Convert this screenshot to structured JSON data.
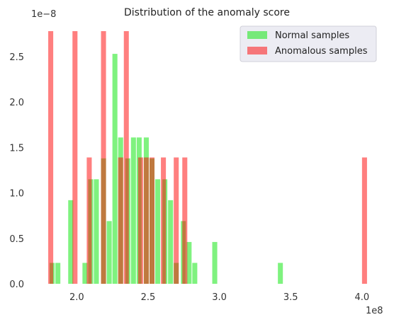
{
  "chart_data": {
    "type": "bar",
    "title": "Distribution of the anomaly score",
    "x_exponent_label": "1e8",
    "y_exponent_label": "1e−8",
    "xlim": [
      1.75,
      4.1
    ],
    "ylim": [
      0,
      2.85
    ],
    "x_ticks": [
      2.0,
      2.5,
      3.0,
      3.5,
      4.0
    ],
    "x_tick_labels": [
      "2.0",
      "2.5",
      "3.0",
      "3.5",
      "4.0"
    ],
    "y_ticks": [
      0.0,
      0.5,
      1.0,
      1.5,
      2.0,
      2.5
    ],
    "y_tick_labels": [
      "0.0",
      "0.5",
      "1.0",
      "1.5",
      "2.0",
      "2.5"
    ],
    "grid": false,
    "legend_position": "top-right",
    "series": [
      {
        "name": "Normal samples",
        "color": "#00e600",
        "bins": [
          {
            "x0": 1.81,
            "x1": 1.85,
            "y": 0.23
          },
          {
            "x0": 1.85,
            "x1": 1.89,
            "y": 0.23
          },
          {
            "x0": 1.94,
            "x1": 1.98,
            "y": 0.92
          },
          {
            "x0": 2.04,
            "x1": 2.08,
            "y": 0.23
          },
          {
            "x0": 2.08,
            "x1": 2.12,
            "y": 1.15
          },
          {
            "x0": 2.12,
            "x1": 2.16,
            "y": 1.15
          },
          {
            "x0": 2.17,
            "x1": 2.21,
            "y": 1.38
          },
          {
            "x0": 2.21,
            "x1": 2.25,
            "y": 0.69
          },
          {
            "x0": 2.25,
            "x1": 2.29,
            "y": 2.53
          },
          {
            "x0": 2.29,
            "x1": 2.33,
            "y": 1.61
          },
          {
            "x0": 2.34,
            "x1": 2.38,
            "y": 1.38
          },
          {
            "x0": 2.38,
            "x1": 2.42,
            "y": 1.61
          },
          {
            "x0": 2.42,
            "x1": 2.46,
            "y": 1.61
          },
          {
            "x0": 2.47,
            "x1": 2.51,
            "y": 1.61
          },
          {
            "x0": 2.51,
            "x1": 2.55,
            "y": 1.38
          },
          {
            "x0": 2.55,
            "x1": 2.59,
            "y": 1.15
          },
          {
            "x0": 2.6,
            "x1": 2.64,
            "y": 1.15
          },
          {
            "x0": 2.64,
            "x1": 2.68,
            "y": 0.92
          },
          {
            "x0": 2.68,
            "x1": 2.72,
            "y": 0.23
          },
          {
            "x0": 2.73,
            "x1": 2.77,
            "y": 0.69
          },
          {
            "x0": 2.77,
            "x1": 2.81,
            "y": 0.46
          },
          {
            "x0": 2.81,
            "x1": 2.85,
            "y": 0.23
          },
          {
            "x0": 2.95,
            "x1": 2.99,
            "y": 0.46
          },
          {
            "x0": 3.41,
            "x1": 3.45,
            "y": 0.23
          }
        ]
      },
      {
        "name": "Anomalous samples",
        "color": "#ff0000",
        "bins": [
          {
            "x0": 1.8,
            "x1": 1.84,
            "y": 2.78
          },
          {
            "x0": 1.97,
            "x1": 2.01,
            "y": 2.78
          },
          {
            "x0": 2.07,
            "x1": 2.11,
            "y": 1.39
          },
          {
            "x0": 2.17,
            "x1": 2.21,
            "y": 2.78
          },
          {
            "x0": 2.29,
            "x1": 2.33,
            "y": 1.39
          },
          {
            "x0": 2.33,
            "x1": 2.37,
            "y": 2.78
          },
          {
            "x0": 2.43,
            "x1": 2.47,
            "y": 1.39
          },
          {
            "x0": 2.47,
            "x1": 2.51,
            "y": 1.39
          },
          {
            "x0": 2.51,
            "x1": 2.55,
            "y": 1.39
          },
          {
            "x0": 2.59,
            "x1": 2.63,
            "y": 1.39
          },
          {
            "x0": 2.68,
            "x1": 2.72,
            "y": 1.39
          },
          {
            "x0": 2.74,
            "x1": 2.78,
            "y": 1.39
          },
          {
            "x0": 4.0,
            "x1": 4.04,
            "y": 1.39
          }
        ]
      }
    ]
  }
}
